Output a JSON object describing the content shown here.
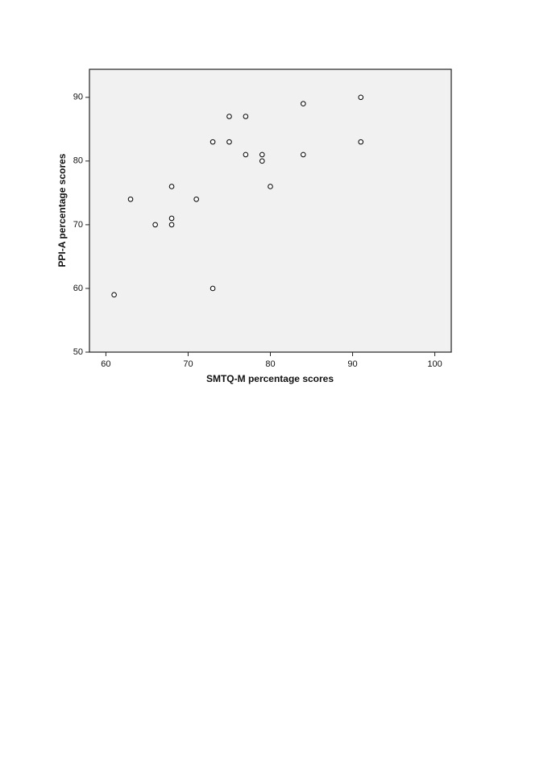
{
  "chart_data": {
    "type": "scatter",
    "x_label": "SMTQ-M percentage scores",
    "y_label": "PPI-A percentage scores",
    "x": [
      61,
      63,
      66,
      68,
      68,
      68,
      71,
      73,
      73,
      75,
      75,
      77,
      77,
      79,
      79,
      80,
      84,
      84,
      91,
      91
    ],
    "values": [
      59,
      74,
      70,
      76,
      71,
      70,
      74,
      83,
      60,
      87,
      83,
      87,
      81,
      81,
      80,
      76,
      89,
      81,
      90,
      83
    ],
    "color": "#000000",
    "xlim": [
      58,
      102
    ],
    "xticks": [
      60,
      70,
      80,
      90,
      100
    ],
    "ylim": [
      50,
      94.4
    ],
    "yticks": [
      50,
      60,
      70,
      80,
      90
    ],
    "grid": false
  }
}
